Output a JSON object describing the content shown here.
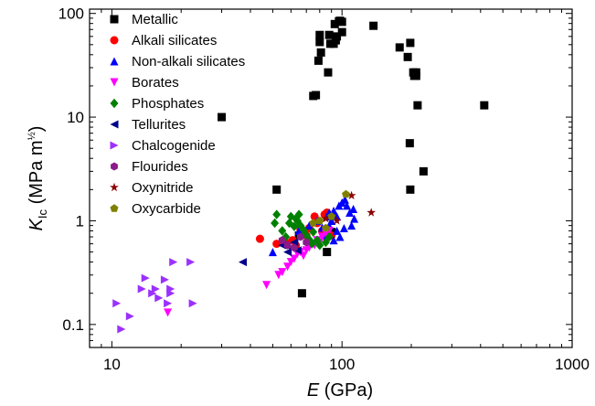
{
  "chart_data": {
    "type": "scatter",
    "x_scale": "log",
    "y_scale": "log",
    "xlim": [
      8,
      1000
    ],
    "ylim": [
      0.06,
      110
    ],
    "xlabel": {
      "main": "E",
      "unit": " (GPa)"
    },
    "ylabel": {
      "main": "K",
      "sub": "Ic",
      "unit_pre": " (MPa m",
      "sup": "½",
      "unit_post": ")"
    },
    "x_ticks": [
      {
        "value": 10,
        "label": "10"
      },
      {
        "value": 100,
        "label": "100"
      },
      {
        "value": 1000,
        "label": "1000"
      }
    ],
    "y_ticks": [
      {
        "value": 0.1,
        "label": "0.1"
      },
      {
        "value": 1,
        "label": "1"
      },
      {
        "value": 10,
        "label": "10"
      },
      {
        "value": 100,
        "label": "100"
      }
    ],
    "grid": false,
    "legend_position": "top-left",
    "series": [
      {
        "name": "Metallic",
        "marker": "square",
        "color": "#000000",
        "points": [
          [
            30,
            10
          ],
          [
            52,
            2
          ],
          [
            67,
            0.2
          ],
          [
            75,
            16
          ],
          [
            77,
            16.3
          ],
          [
            79,
            35
          ],
          [
            80,
            53
          ],
          [
            81,
            42
          ],
          [
            80,
            62
          ],
          [
            87,
            27
          ],
          [
            89,
            51
          ],
          [
            88,
            62
          ],
          [
            92,
            51
          ],
          [
            94,
            55
          ],
          [
            93,
            79
          ],
          [
            95,
            60
          ],
          [
            97,
            84
          ],
          [
            100,
            66
          ],
          [
            100,
            83
          ],
          [
            98,
            85
          ],
          [
            137,
            76
          ],
          [
            178,
            47
          ],
          [
            193,
            38
          ],
          [
            198,
            52
          ],
          [
            204,
            27
          ],
          [
            206,
            25
          ],
          [
            210,
            27
          ],
          [
            210,
            25
          ],
          [
            213,
            13
          ],
          [
            197,
            5.6
          ],
          [
            226,
            3
          ],
          [
            198,
            2
          ],
          [
            415,
            13
          ],
          [
            86,
            0.5
          ],
          [
            90,
            0.78
          ],
          [
            65,
            0.72
          ]
        ]
      },
      {
        "name": "Alkali silicates",
        "marker": "circle",
        "color": "#ff0000",
        "points": [
          [
            44,
            0.67
          ],
          [
            52,
            0.6
          ],
          [
            57,
            0.62
          ],
          [
            61,
            0.65
          ],
          [
            63,
            0.58
          ],
          [
            66,
            0.82
          ],
          [
            68,
            0.78
          ],
          [
            70,
            0.72
          ],
          [
            72,
            0.85
          ],
          [
            76,
            1.1
          ],
          [
            78,
            0.95
          ],
          [
            82,
            0.8
          ],
          [
            84,
            1.15
          ],
          [
            86,
            1.2
          ],
          [
            90,
            0.72
          ]
        ]
      },
      {
        "name": "Non-alkali silicates",
        "marker": "triangle-up",
        "color": "#0000ff",
        "points": [
          [
            50,
            0.5
          ],
          [
            56,
            0.63
          ],
          [
            65,
            0.8
          ],
          [
            72,
            0.9
          ],
          [
            78,
            1.0
          ],
          [
            82,
            0.86
          ],
          [
            86,
            1.1
          ],
          [
            88,
            1.2
          ],
          [
            90,
            1.0
          ],
          [
            92,
            1.25
          ],
          [
            95,
            1.1
          ],
          [
            97,
            1.4
          ],
          [
            98,
            0.7
          ],
          [
            100,
            1.5
          ],
          [
            103,
            1.6
          ],
          [
            105,
            1.4
          ],
          [
            102,
            0.85
          ],
          [
            108,
            1.2
          ],
          [
            110,
            0.9
          ],
          [
            112,
            1.3
          ],
          [
            113,
            1.05
          ],
          [
            92,
            0.65
          ],
          [
            95,
            0.8
          ],
          [
            88,
            0.9
          ],
          [
            84,
            0.72
          ]
        ]
      },
      {
        "name": "Borates",
        "marker": "triangle-down",
        "color": "#ff00ff",
        "points": [
          [
            17.5,
            0.13
          ],
          [
            47,
            0.24
          ],
          [
            53,
            0.3
          ],
          [
            55,
            0.32
          ],
          [
            58,
            0.36
          ],
          [
            60,
            0.4
          ],
          [
            62,
            0.43
          ],
          [
            64,
            0.48
          ],
          [
            66,
            0.5
          ],
          [
            68,
            0.46
          ],
          [
            70,
            0.52
          ],
          [
            72,
            0.55
          ],
          [
            74,
            0.6
          ],
          [
            76,
            0.58
          ],
          [
            78,
            0.65
          ],
          [
            80,
            0.62
          ],
          [
            82,
            0.7
          ],
          [
            85,
            0.75
          ],
          [
            88,
            0.8
          ]
        ]
      },
      {
        "name": "Phosphates",
        "marker": "diamond",
        "color": "#008000",
        "points": [
          [
            52,
            1.15
          ],
          [
            51,
            0.95
          ],
          [
            55,
            0.8
          ],
          [
            57,
            0.7
          ],
          [
            59,
            0.95
          ],
          [
            60,
            1.1
          ],
          [
            62,
            0.88
          ],
          [
            63,
            1.05
          ],
          [
            64,
            1.0
          ],
          [
            65,
            1.15
          ],
          [
            66,
            0.9
          ],
          [
            68,
            0.82
          ],
          [
            69,
            0.75
          ],
          [
            70,
            0.72
          ],
          [
            72,
            0.66
          ],
          [
            74,
            0.6
          ],
          [
            75,
            0.78
          ],
          [
            78,
            0.65
          ],
          [
            80,
            0.58
          ],
          [
            85,
            0.62
          ],
          [
            88,
            0.7
          ]
        ]
      },
      {
        "name": "Tellurites",
        "marker": "triangle-left",
        "color": "#00008b",
        "points": [
          [
            37,
            0.4
          ],
          [
            55,
            0.58
          ],
          [
            58,
            0.5
          ],
          [
            60,
            0.55
          ],
          [
            62,
            0.62
          ],
          [
            64,
            0.52
          ]
        ]
      },
      {
        "name": "Chalcogenide",
        "marker": "triangle-right",
        "color": "#9b30ff",
        "points": [
          [
            10.5,
            0.16
          ],
          [
            11,
            0.09
          ],
          [
            12,
            0.12
          ],
          [
            13.5,
            0.22
          ],
          [
            14,
            0.28
          ],
          [
            15,
            0.2
          ],
          [
            15.5,
            0.22
          ],
          [
            16,
            0.18
          ],
          [
            17,
            0.27
          ],
          [
            17.5,
            0.16
          ],
          [
            18,
            0.2
          ],
          [
            18,
            0.22
          ],
          [
            18.5,
            0.4
          ],
          [
            22,
            0.4
          ],
          [
            22.5,
            0.16
          ]
        ]
      },
      {
        "name": "Flourides",
        "marker": "hexagon",
        "color": "#8b1a8b",
        "points": [
          [
            55,
            0.65
          ],
          [
            58,
            0.58
          ],
          [
            62,
            0.55
          ],
          [
            66,
            0.7
          ],
          [
            70,
            0.62
          ]
        ]
      },
      {
        "name": "Oxynitride",
        "marker": "star",
        "color": "#8b0000",
        "points": [
          [
            110,
            1.75
          ],
          [
            134,
            1.2
          ],
          [
            85,
            1.05
          ],
          [
            95,
            1.0
          ]
        ]
      },
      {
        "name": "Oxycarbide",
        "marker": "pentagon",
        "color": "#808000",
        "points": [
          [
            104,
            1.8
          ],
          [
            75,
            0.95
          ],
          [
            80,
            1.0
          ],
          [
            85,
            0.85
          ],
          [
            90,
            1.1
          ]
        ]
      }
    ]
  }
}
